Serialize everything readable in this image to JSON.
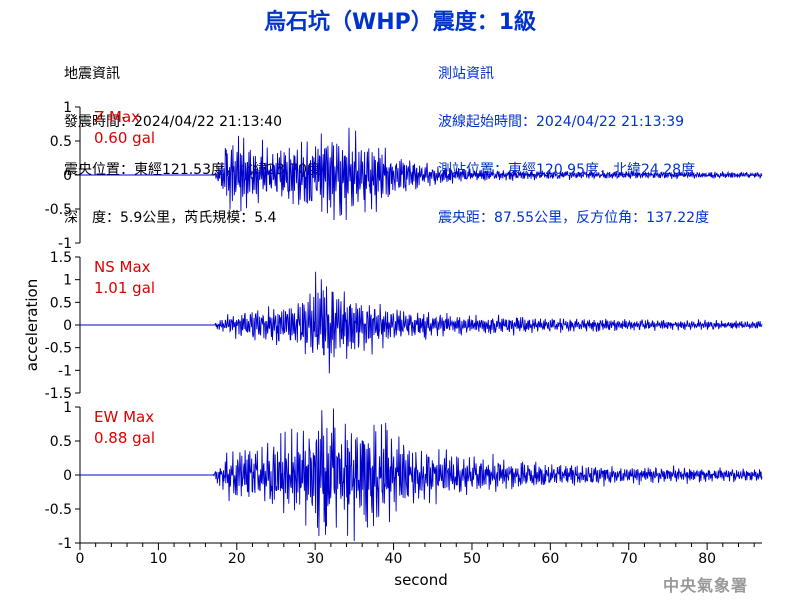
{
  "title": "烏石坑（WHP）震度：1級",
  "quake_info": {
    "header": "地震資訊",
    "origin_time": "發震時間：2024/04/22 21:13:40",
    "epicenter": "震央位置：東經121.53度，北緯23.70度",
    "depth_mag": "深　度：5.9公里，芮氏規模：5.4"
  },
  "station_info": {
    "header": "測站資訊",
    "wave_start": "波線起始時間：2024/04/22 21:13:39",
    "location": "測站位置：東經120.95度，北緯24.28度",
    "distance": "震央距：87.55公里，反方位角：137.22度"
  },
  "watermark": "中央氣象署",
  "colors": {
    "title": "#0033cc",
    "trace": "#0000cc",
    "max_label": "#dd0000"
  },
  "chart_data": [
    {
      "type": "line",
      "component": "Z",
      "max_label": "Z Max",
      "max_value": "0.60 gal",
      "xlabel": "second",
      "ylabel": "acceleration",
      "xlim": [
        0,
        87
      ],
      "ylim": [
        -1,
        1
      ],
      "yticks": [
        "1",
        "0.5",
        "0",
        "-0.5",
        "-1"
      ],
      "xticks": [
        "0",
        "10",
        "20",
        "30",
        "40",
        "50",
        "60",
        "70",
        "80"
      ],
      "signal_onset_s": 17.2,
      "envelope": [
        [
          0,
          0.0
        ],
        [
          17.0,
          0.0
        ],
        [
          17.5,
          0.08
        ],
        [
          18.5,
          0.35
        ],
        [
          20,
          0.45
        ],
        [
          22,
          0.35
        ],
        [
          25,
          0.32
        ],
        [
          28,
          0.35
        ],
        [
          30,
          0.45
        ],
        [
          33,
          0.55
        ],
        [
          35,
          0.45
        ],
        [
          38,
          0.38
        ],
        [
          40,
          0.22
        ],
        [
          45,
          0.12
        ],
        [
          50,
          0.07
        ],
        [
          60,
          0.05
        ],
        [
          75,
          0.04
        ],
        [
          87,
          0.035
        ]
      ],
      "peak": {
        "t": 33.2,
        "value": 0.6
      }
    },
    {
      "type": "line",
      "component": "NS",
      "max_label": "NS Max",
      "max_value": "1.01 gal",
      "xlim": [
        0,
        87
      ],
      "ylim": [
        -1.5,
        1.5
      ],
      "yticks": [
        "1.5",
        "1",
        "0.5",
        "0",
        "-0.5",
        "-1",
        "-1.5"
      ],
      "signal_onset_s": 17.2,
      "envelope": [
        [
          0,
          0.0
        ],
        [
          17.0,
          0.0
        ],
        [
          17.5,
          0.08
        ],
        [
          19,
          0.2
        ],
        [
          22,
          0.25
        ],
        [
          25,
          0.32
        ],
        [
          28,
          0.45
        ],
        [
          30,
          0.8
        ],
        [
          32,
          0.7
        ],
        [
          34,
          0.55
        ],
        [
          37,
          0.45
        ],
        [
          40,
          0.28
        ],
        [
          45,
          0.2
        ],
        [
          50,
          0.16
        ],
        [
          60,
          0.13
        ],
        [
          70,
          0.1
        ],
        [
          80,
          0.08
        ],
        [
          87,
          0.07
        ]
      ],
      "peak": {
        "t": 30.8,
        "value": 1.01
      }
    },
    {
      "type": "line",
      "component": "EW",
      "max_label": "EW Max",
      "max_value": "0.88 gal",
      "xlim": [
        0,
        87
      ],
      "ylim": [
        -1,
        1
      ],
      "yticks": [
        "1",
        "0.5",
        "0",
        "-0.5",
        "-1"
      ],
      "signal_onset_s": 17.2,
      "envelope": [
        [
          0,
          0.0
        ],
        [
          17.0,
          0.0
        ],
        [
          17.5,
          0.1
        ],
        [
          19,
          0.3
        ],
        [
          22,
          0.32
        ],
        [
          25,
          0.4
        ],
        [
          28,
          0.5
        ],
        [
          31,
          0.75
        ],
        [
          33,
          0.6
        ],
        [
          36,
          0.7
        ],
        [
          39,
          0.55
        ],
        [
          42,
          0.35
        ],
        [
          45,
          0.3
        ],
        [
          50,
          0.22
        ],
        [
          55,
          0.17
        ],
        [
          60,
          0.14
        ],
        [
          70,
          0.1
        ],
        [
          80,
          0.08
        ],
        [
          87,
          0.07
        ]
      ],
      "peak": {
        "t": 31.3,
        "value": 0.88
      }
    }
  ]
}
